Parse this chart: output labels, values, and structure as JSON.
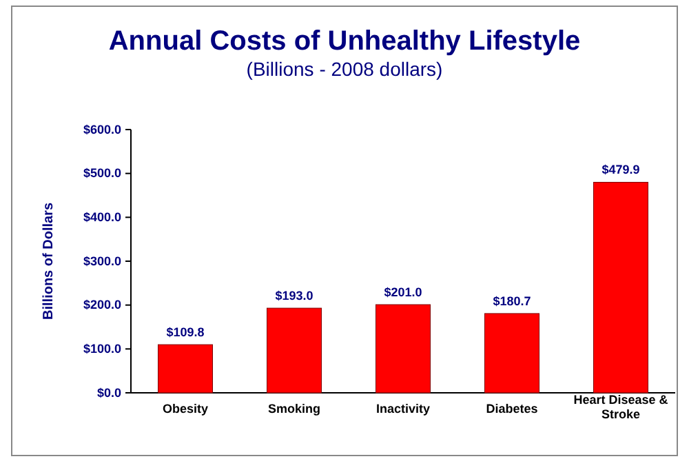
{
  "chart_data": {
    "type": "bar",
    "title": "Annual Costs of Unhealthy Lifestyle",
    "subtitle": "(Billions - 2008 dollars)",
    "ylabel": "Billions of Dollars",
    "categories": [
      "Obesity",
      "Smoking",
      "Inactivity",
      "Diabetes",
      "Heart Disease & Stroke"
    ],
    "values": [
      109.8,
      193.0,
      201.0,
      180.7,
      479.9
    ],
    "value_labels": [
      "$109.8",
      "$193.0",
      "$201.0",
      "$180.7",
      "$479.9"
    ],
    "color": "#ff0000",
    "ylim": [
      0,
      600
    ],
    "yticks": [
      {
        "value": 0,
        "label": "$0.0"
      },
      {
        "value": 100,
        "label": "$100.0"
      },
      {
        "value": 200,
        "label": "$200.0"
      },
      {
        "value": 300,
        "label": "$300.0"
      },
      {
        "value": 400,
        "label": "$400.0"
      },
      {
        "value": 500,
        "label": "$500.0"
      },
      {
        "value": 600,
        "label": "$600.0"
      }
    ],
    "grid": false
  }
}
